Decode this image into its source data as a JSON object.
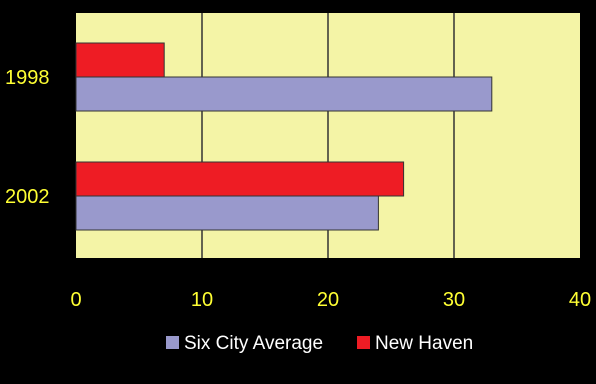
{
  "chart_data": {
    "type": "bar",
    "orientation": "horizontal",
    "title": "",
    "xlabel": "",
    "ylabel": "",
    "categories": [
      "1998",
      "2002"
    ],
    "series": [
      {
        "name": "New Haven",
        "values": [
          7,
          26
        ],
        "color": "#ee1c24"
      },
      {
        "name": "Six City Average",
        "values": [
          33,
          24
        ],
        "color": "#9999cc"
      }
    ],
    "xlim": [
      0,
      40
    ],
    "xticks": [
      "0",
      "10",
      "20",
      "30",
      "40"
    ],
    "grid": true,
    "legend_position": "bottom",
    "legend_order": [
      "Six City Average",
      "New Haven"
    ],
    "colors": {
      "background": "#000000",
      "plot_area": "#f4f4a6",
      "gridline": "#333333",
      "tick_label": "#ffff33",
      "legend_text": "#ffffff"
    }
  }
}
